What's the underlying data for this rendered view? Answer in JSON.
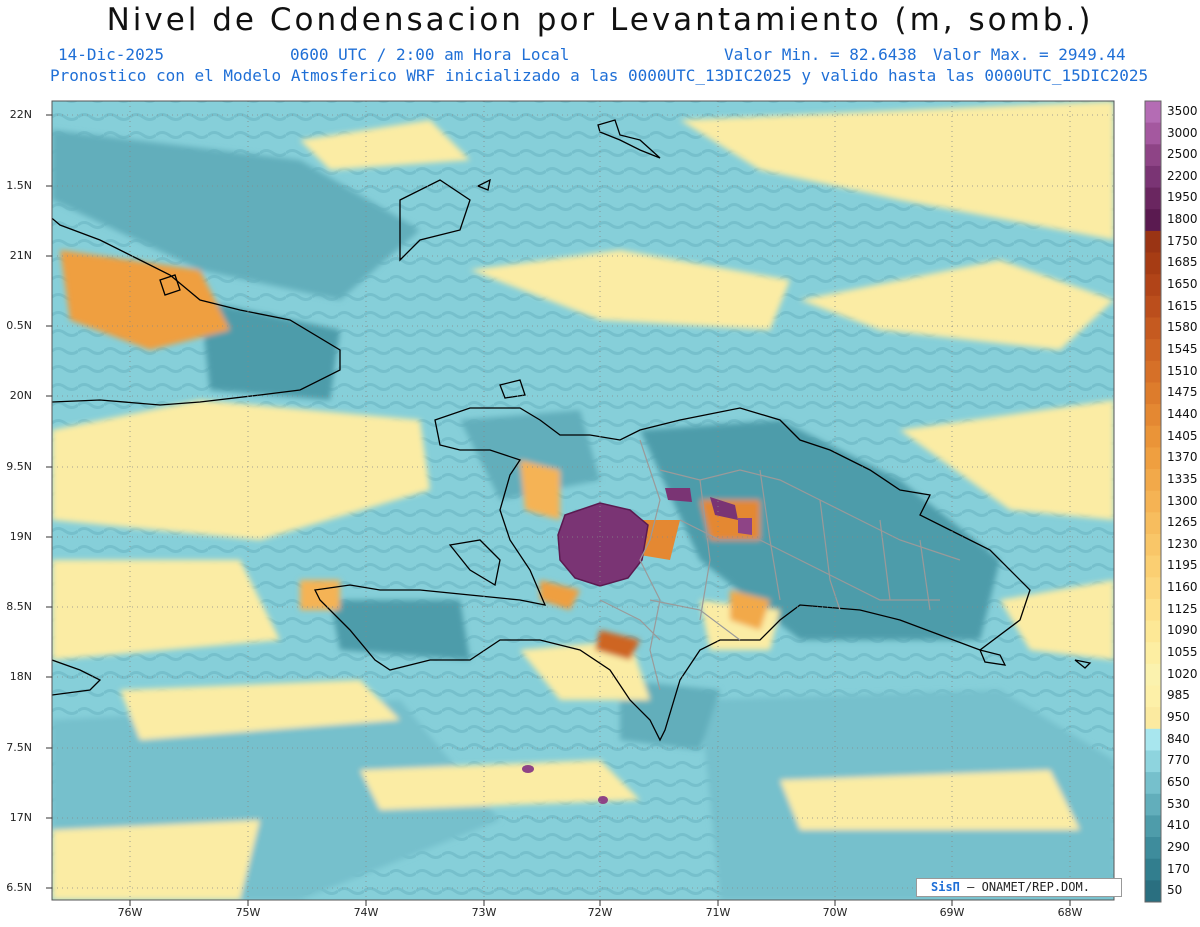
{
  "header": {
    "title": "Nivel de Condensacion por Levantamiento (m, somb.)",
    "date": "14-Dic-2025",
    "time": "0600 UTC / 2:00 am Hora Local",
    "vmin": "Valor Min. = 82.6438",
    "vmax": "Valor Max. = 2949.44",
    "forecast": "Pronostico con el Modelo Atmosferico WRF inicializado a las 0000UTC_13DIC2025 y valido hasta las  0000UTC_15DIC2025"
  },
  "map": {
    "lat_labels": [
      "22N",
      "1.5N",
      "21N",
      "0.5N",
      "20N",
      "9.5N",
      "19N",
      "8.5N",
      "18N",
      "7.5N",
      "17N",
      "6.5N"
    ],
    "lon_labels": [
      "76W",
      "75W",
      "74W",
      "73W",
      "72W",
      "71W",
      "70W",
      "69W",
      "68W"
    ],
    "credit_brand": "SisΠ",
    "credit_text": "– ONAMET/REP.DOM."
  },
  "colorbar": {
    "levels": [
      "3500",
      "3000",
      "2500",
      "2200",
      "1950",
      "1800",
      "1750",
      "1685",
      "1650",
      "1615",
      "1580",
      "1545",
      "1510",
      "1475",
      "1440",
      "1405",
      "1370",
      "1335",
      "1300",
      "1265",
      "1230",
      "1195",
      "1160",
      "1125",
      "1090",
      "1055",
      "1020",
      "985",
      "950",
      "840",
      "770",
      "650",
      "530",
      "410",
      "290",
      "170",
      "50"
    ],
    "colors": [
      "#b46cb4",
      "#a4589f",
      "#8e4486",
      "#7a3474",
      "#6a2660",
      "#5a1a50",
      "#9a3414",
      "#a63c14",
      "#b14418",
      "#bb4e1c",
      "#c55a20",
      "#ce6524",
      "#d67028",
      "#dd7c2c",
      "#e48832",
      "#ea9438",
      "#ef9f40",
      "#f2a94a",
      "#f5b354",
      "#f7bd5e",
      "#f9c668",
      "#fbcf72",
      "#fcd77e",
      "#fde08a",
      "#fde896",
      "#fdeea2",
      "#fbf2ae",
      "#fdf0a8",
      "#fbeaa0",
      "#a8e6ee",
      "#8ed4de",
      "#76c0cc",
      "#62aebb",
      "#4e9caa",
      "#3e8c9c",
      "#327e8e",
      "#2a6f80"
    ]
  }
}
